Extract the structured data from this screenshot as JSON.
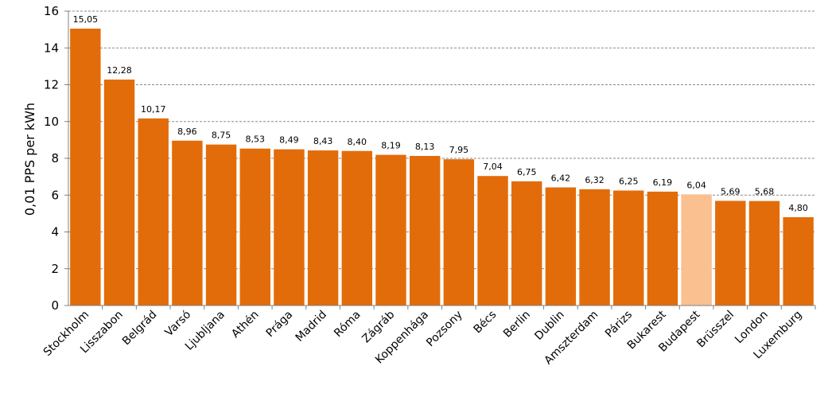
{
  "chart_data": {
    "type": "bar",
    "ylabel": "0,01 PPS per kWh",
    "ylim": [
      0,
      16
    ],
    "ytick_step": 2,
    "grid": true,
    "colors": {
      "default": "#E36C0A",
      "highlight": "#FAC090"
    },
    "highlight": "Budapest",
    "categories": [
      "Stockholm",
      "Lisszabon",
      "Belgrád",
      "Varsó",
      "Ljubljana",
      "Athén",
      "Prága",
      "Madrid",
      "Róma",
      "Zágráb",
      "Koppenhága",
      "Pozsony",
      "Bécs",
      "Berlin",
      "Dublin",
      "Amszterdam",
      "Párizs",
      "Bukarest",
      "Budapest",
      "Brüsszel",
      "London",
      "Luxemburg"
    ],
    "values": [
      15.05,
      12.28,
      10.17,
      8.96,
      8.75,
      8.53,
      8.49,
      8.43,
      8.4,
      8.19,
      8.13,
      7.95,
      7.04,
      6.75,
      6.42,
      6.32,
      6.25,
      6.19,
      6.04,
      5.69,
      5.68,
      4.8
    ],
    "value_labels": [
      "15,05",
      "12,28",
      "10,17",
      "8,96",
      "8,75",
      "8,53",
      "8,49",
      "8,43",
      "8,40",
      "8,19",
      "8,13",
      "7,95",
      "7,04",
      "6,75",
      "6,42",
      "6,32",
      "6,25",
      "6,19",
      "6,04",
      "5,69",
      "5,68",
      "4,80"
    ]
  }
}
